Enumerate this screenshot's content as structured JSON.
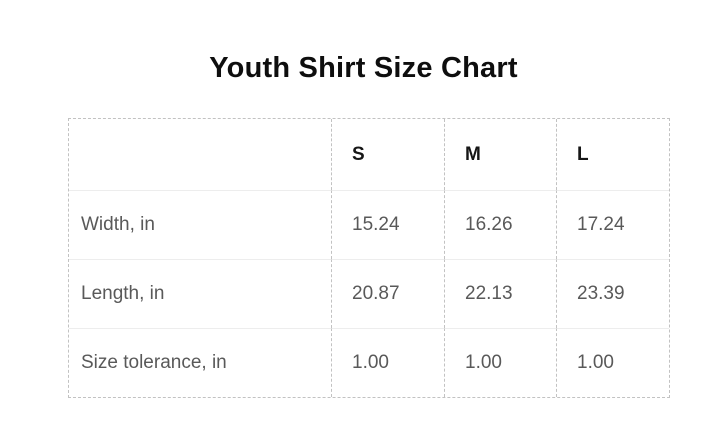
{
  "page": {
    "title": "Youth Shirt Size Chart"
  },
  "size_table": {
    "column_headers": [
      "S",
      "M",
      "L"
    ],
    "rows": [
      {
        "label": "Width, in",
        "values": [
          "15.24",
          "16.26",
          "17.24"
        ]
      },
      {
        "label": "Length, in",
        "values": [
          "20.87",
          "22.13",
          "23.39"
        ]
      },
      {
        "label": "Size tolerance, in",
        "values": [
          "1.00",
          "1.00",
          "1.00"
        ]
      }
    ]
  },
  "chart_data": {
    "type": "table",
    "title": "Youth Shirt Size Chart",
    "columns": [
      "",
      "S",
      "M",
      "L"
    ],
    "rows": [
      [
        "Width, in",
        15.24,
        16.26,
        17.24
      ],
      [
        "Length, in",
        20.87,
        22.13,
        23.39
      ],
      [
        "Size tolerance, in",
        1.0,
        1.0,
        1.0
      ]
    ],
    "units": "in"
  },
  "colors": {
    "background": "#ffffff",
    "title_text": "#0e0e0e",
    "header_text": "#161616",
    "cell_text": "#595959",
    "dashed_border": "#c2c2c2",
    "row_divider": "#ededed"
  }
}
